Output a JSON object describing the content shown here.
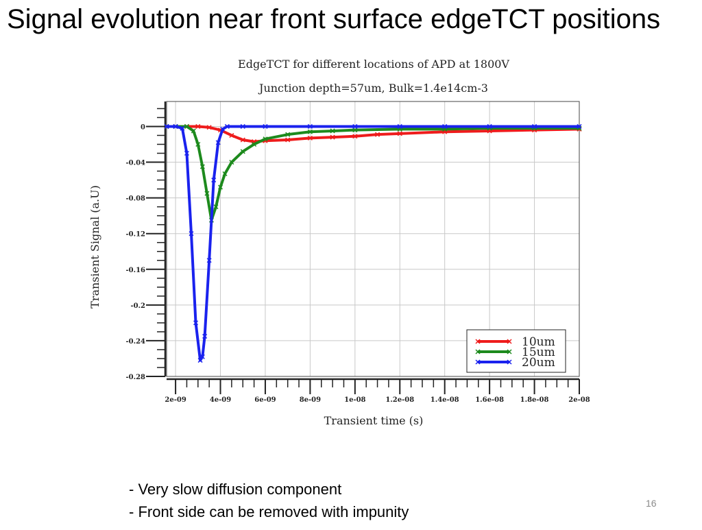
{
  "slide": {
    "title": "Signal evolution near front surface edgeTCT positions",
    "bullets": [
      "- Very slow diffusion component",
      "- Front side can be removed with impunity"
    ],
    "page_number": "16"
  },
  "chart_data": {
    "type": "line",
    "title": "EdgeTCT for different locations of APD at 1800V",
    "subtitle": "Junction depth=57um, Bulk=1.4e14cm-3",
    "xlabel": "Transient time (s)",
    "ylabel": "Transient Signal (a.U)",
    "xlim": [
      1.6e-09,
      2e-08
    ],
    "ylim": [
      -0.28,
      0.028
    ],
    "xticks": [
      2e-09,
      4e-09,
      6e-09,
      8e-09,
      1e-08,
      1.2e-08,
      1.4e-08,
      1.6e-08,
      1.8e-08,
      2e-08
    ],
    "xtick_labels": [
      "2e-09",
      "4e-09",
      "6e-09",
      "8e-09",
      "1e-08",
      "1.2e-08",
      "1.4e-08",
      "1.6e-08",
      "1.8e-08",
      "2e-08"
    ],
    "yticks": [
      0,
      -0.04,
      -0.08,
      -0.12,
      -0.16,
      -0.2,
      -0.24,
      -0.28
    ],
    "ytick_labels": [
      "0",
      "-0.04",
      "-0.08",
      "-0.12",
      "-0.16",
      "-0.2",
      "-0.24",
      "-0.28"
    ],
    "grid": true,
    "legend_position": "bottom-right",
    "series": [
      {
        "name": "10um",
        "color": "#ee1c1c",
        "x": [
          1.6e-09,
          2e-09,
          2.5e-09,
          3e-09,
          3.5e-09,
          4e-09,
          4.5e-09,
          5e-09,
          5.5e-09,
          6e-09,
          7e-09,
          8e-09,
          9e-09,
          1e-08,
          1.1e-08,
          1.2e-08,
          1.4e-08,
          1.6e-08,
          1.8e-08,
          2e-08
        ],
        "y": [
          0.0,
          0.0,
          0.0,
          0.0,
          -0.001,
          -0.004,
          -0.01,
          -0.015,
          -0.017,
          -0.016,
          -0.015,
          -0.013,
          -0.012,
          -0.011,
          -0.009,
          -0.008,
          -0.006,
          -0.005,
          -0.004,
          -0.003
        ]
      },
      {
        "name": "15um",
        "color": "#1d8a1d",
        "x": [
          1.6e-09,
          2e-09,
          2.5e-09,
          2.8e-09,
          3e-09,
          3.2e-09,
          3.4e-09,
          3.6e-09,
          3.8e-09,
          4e-09,
          4.2e-09,
          4.5e-09,
          5e-09,
          5.5e-09,
          6e-09,
          7e-09,
          8e-09,
          9e-09,
          1e-08,
          1.2e-08,
          1.4e-08,
          1.6e-08,
          1.8e-08,
          2e-08
        ],
        "y": [
          0.0,
          0.0,
          0.0,
          -0.005,
          -0.02,
          -0.045,
          -0.075,
          -0.105,
          -0.09,
          -0.068,
          -0.053,
          -0.04,
          -0.028,
          -0.02,
          -0.014,
          -0.009,
          -0.006,
          -0.005,
          -0.004,
          -0.003,
          -0.003,
          -0.002,
          -0.002,
          -0.002
        ]
      },
      {
        "name": "20um",
        "color": "#1a22ee",
        "x": [
          1.6e-09,
          2e-09,
          2.3e-09,
          2.5e-09,
          2.7e-09,
          2.9e-09,
          3.1e-09,
          3.2e-09,
          3.3e-09,
          3.5e-09,
          3.7e-09,
          3.9e-09,
          4.1e-09,
          4.3e-09,
          5e-09,
          6e-09,
          8e-09,
          1e-08,
          1.2e-08,
          1.4e-08,
          1.6e-08,
          1.8e-08,
          2e-08
        ],
        "y": [
          0.0,
          0.0,
          -0.002,
          -0.03,
          -0.12,
          -0.22,
          -0.262,
          -0.258,
          -0.235,
          -0.15,
          -0.06,
          -0.018,
          -0.003,
          0.0,
          0.0,
          0.0,
          0.0,
          0.0,
          0.0,
          0.0,
          0.0,
          0.0,
          0.0
        ]
      }
    ]
  }
}
